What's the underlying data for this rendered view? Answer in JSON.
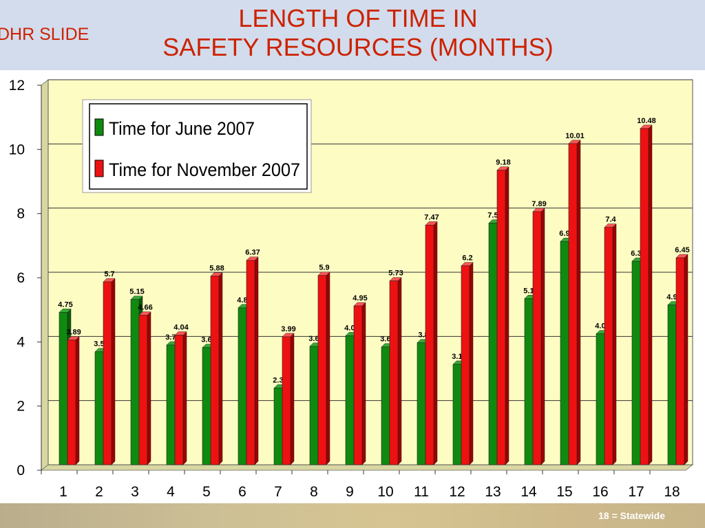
{
  "slide": {
    "tag": "DHR SLIDE",
    "title_line1": "LENGTH OF TIME IN",
    "title_line2": "SAFETY RESOURCES (MONTHS)",
    "footnote": "18 = Statewide"
  },
  "colors": {
    "series_green": "#0f8a0f",
    "series_red": "#ee1111",
    "plot_bg": "#fdfcc3",
    "title_red": "#cc2200"
  },
  "chart_data": {
    "type": "bar",
    "categories": [
      "1",
      "2",
      "3",
      "4",
      "5",
      "6",
      "7",
      "8",
      "9",
      "10",
      "11",
      "12",
      "13",
      "14",
      "15",
      "16",
      "17",
      "18"
    ],
    "series": [
      {
        "name": "Time for June 2007",
        "values": [
          4.75,
          3.52,
          5.15,
          3.73,
          3.65,
          4.89,
          2.39,
          3.69,
          4.02,
          3.67,
          3.8,
          3.13,
          7.53,
          5.18,
          6.96,
          4.08,
          6.34,
          4.98
        ],
        "labels": [
          "4.75",
          "3.52",
          "5.15",
          "3.73",
          "3.65",
          "4.89",
          "2.39",
          "3.69",
          "4.02",
          "3.67",
          "3.8",
          "3.13",
          "7.53",
          "5.18",
          "6.96",
          "4.08",
          "6.34",
          "4.98"
        ]
      },
      {
        "name": "Time for November 2007",
        "values": [
          3.89,
          5.7,
          4.66,
          4.04,
          5.88,
          6.37,
          3.99,
          5.9,
          4.95,
          5.73,
          7.47,
          6.2,
          9.18,
          7.89,
          10.01,
          7.4,
          10.48,
          6.45
        ],
        "labels": [
          "3.89",
          "5.7",
          "4.66",
          "4.04",
          "5.88",
          "6.37",
          "3.99",
          "5.9",
          "4.95",
          "5.73",
          "7.47",
          "6.2",
          "9.18",
          "7.89",
          "10.01",
          "7.4",
          "10.48",
          "6.45"
        ]
      }
    ],
    "y_ticks": [
      "0",
      "2",
      "4",
      "6",
      "8",
      "10",
      "12"
    ],
    "ylim": [
      0,
      12
    ],
    "grid": true,
    "legend_position": "top-left"
  }
}
